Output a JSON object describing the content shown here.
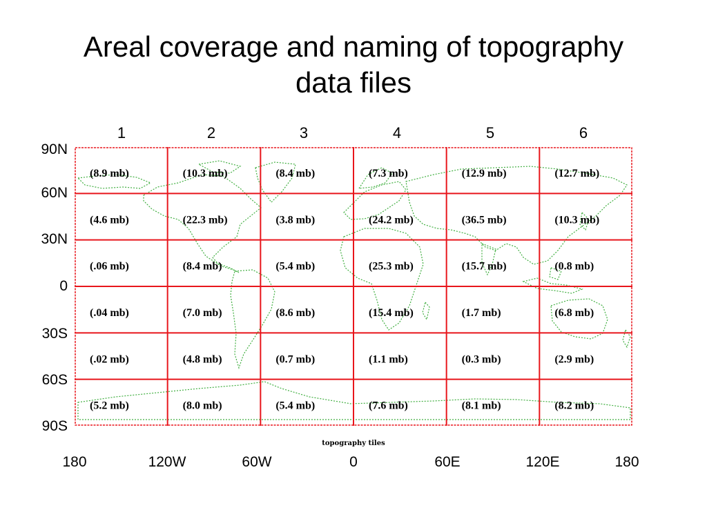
{
  "title": {
    "line1": "Areal coverage and naming of topography",
    "line2": "data files"
  },
  "columns": [
    "1",
    "2",
    "3",
    "4",
    "5",
    "6"
  ],
  "latitudes": [
    "90N",
    "60N",
    "30N",
    "0",
    "30S",
    "60S",
    "90S"
  ],
  "longitudes": [
    "180",
    "120W",
    "60W",
    "0",
    "60E",
    "120E",
    "180"
  ],
  "caption": "topography tiles",
  "tiles": [
    [
      "(8.9 mb)",
      "(10.3 mb)",
      "(8.4 mb)",
      "(7.3 mb)",
      "(12.9 mb)",
      "(12.7 mb)"
    ],
    [
      "(4.6 mb)",
      "(22.3 mb)",
      "(3.8 mb)",
      "(24.2 mb)",
      "(36.5 mb)",
      "(10.3 mb)"
    ],
    [
      "(.06 mb)",
      "(8.4 mb)",
      "(5.4 mb)",
      "(25.3 mb)",
      "(15.7 mb)",
      "(0.8 mb)"
    ],
    [
      "(.04 mb)",
      "(7.0 mb)",
      "(8.6 mb)",
      "(15.4 mb)",
      "(1.7 mb)",
      "(6.8 mb)"
    ],
    [
      "(.02 mb)",
      "(4.8 mb)",
      "(0.7 mb)",
      "(1.1 mb)",
      "(0.3 mb)",
      "(2.9 mb)"
    ],
    [
      "(5.2 mb)",
      "(8.0 mb)",
      "(5.4 mb)",
      "(7.6 mb)",
      "(8.1 mb)",
      "(8.2 mb)"
    ]
  ],
  "colors": {
    "grid": "#e8151b",
    "coastline": "#3fae3f"
  }
}
